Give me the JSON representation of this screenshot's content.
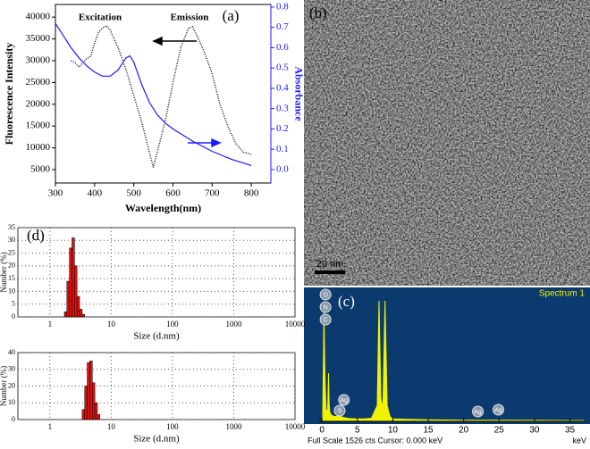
{
  "chart_data": [
    {
      "type": "line",
      "xlabel": "Wavelength(nm)",
      "ylabel": "Fluorescence Intensity",
      "y2label": "Absorbance",
      "annotations": [
        "Excitation",
        "Emission",
        "(a)"
      ],
      "xlim": [
        300,
        850
      ],
      "xticks": [
        300,
        400,
        500,
        600,
        700,
        800
      ],
      "ylim": [
        1930,
        42900
      ],
      "yticks": [
        5000,
        10000,
        15000,
        20000,
        25000,
        30000,
        35000,
        40000
      ],
      "y2lim": [
        -0.066,
        0.813
      ],
      "y2ticks": [
        {
          "value": 0,
          "label": "0.0"
        },
        0.1,
        0.2,
        0.3,
        0.4,
        0.5,
        0.6,
        0.7,
        0.8
      ],
      "series": [
        {
          "color": "#000000",
          "line_style": "dotted",
          "x": [
            340,
            350,
            360,
            370,
            380,
            390,
            400,
            410,
            420,
            430,
            440,
            450,
            460,
            480,
            500,
            520,
            540,
            550,
            560,
            580,
            600,
            620,
            640,
            650,
            660,
            680,
            700,
            720,
            740,
            760,
            780,
            800
          ],
          "values": [
            30000,
            29500,
            28500,
            29500,
            30500,
            31000,
            34000,
            36500,
            37500,
            38000,
            37000,
            35000,
            33000,
            28000,
            22000,
            16000,
            9000,
            5500,
            9000,
            16000,
            25000,
            33000,
            37500,
            37800,
            36000,
            32000,
            27000,
            20000,
            15000,
            11000,
            9000,
            8500
          ]
        },
        {
          "color": "#1a1aff",
          "line_style": "solid",
          "axis": "y2",
          "x": [
            300,
            320,
            340,
            360,
            380,
            400,
            420,
            440,
            460,
            470,
            480,
            490,
            500,
            520,
            540,
            560,
            580,
            600,
            650,
            700,
            750,
            800
          ],
          "values": [
            0.72,
            0.66,
            0.6,
            0.55,
            0.51,
            0.48,
            0.46,
            0.46,
            0.49,
            0.52,
            0.55,
            0.56,
            0.53,
            0.42,
            0.33,
            0.27,
            0.23,
            0.2,
            0.14,
            0.09,
            0.05,
            0.02
          ]
        }
      ]
    },
    {
      "type": "area",
      "title": "Spectrum 1",
      "annotations": [
        "(c)"
      ],
      "xlabel": "keV",
      "footer": "Full Scale 1526 cts  Cursor: 0.000 keV",
      "xlim": [
        -0.4,
        37.2
      ],
      "xticks": [
        0,
        5,
        10,
        15,
        20,
        25,
        30,
        35
      ],
      "ylim": [
        0,
        1526
      ],
      "background": "#0b3a6e",
      "color": "#f2f200",
      "x": [
        0.1,
        0.2,
        0.28,
        0.39,
        0.45,
        0.52,
        0.6,
        0.8,
        0.93,
        1.0,
        1.1,
        1.3,
        1.5,
        2.0,
        2.3,
        2.5,
        2.7,
        3.0,
        3.5,
        4.0,
        5,
        6,
        7,
        7.8,
        8.05,
        8.3,
        8.6,
        8.9,
        9.2,
        9.6,
        10,
        12,
        15,
        20,
        22,
        25,
        30,
        35,
        37
      ],
      "values": [
        100,
        800,
        1450,
        700,
        500,
        300,
        150,
        120,
        610,
        250,
        120,
        80,
        70,
        60,
        70,
        80,
        60,
        50,
        40,
        35,
        30,
        30,
        40,
        200,
        1526,
        300,
        150,
        1526,
        200,
        60,
        30,
        25,
        20,
        15,
        15,
        15,
        12,
        10,
        10
      ],
      "peak_labels": [
        {
          "text": "O",
          "x": 0.5
        },
        {
          "text": "N",
          "x": 0.5
        },
        {
          "text": "C",
          "x": 0.5
        },
        {
          "text": "Ag",
          "x": 3.1
        },
        {
          "text": "S",
          "x": 2.5
        },
        {
          "text": "Ag",
          "x": 22.0
        },
        {
          "text": "Ag",
          "x": 24.9
        }
      ]
    },
    {
      "type": "histogram",
      "annotations": [
        "(d)"
      ],
      "xlabel": "Size (d.nm)",
      "ylabel": "Number (%)",
      "log_x": true,
      "grid": true,
      "color": "#dd1111",
      "xlim": [
        0.3,
        10000
      ],
      "xticks": [
        1,
        10,
        100,
        1000,
        10000
      ],
      "ylim": [
        0,
        35
      ],
      "yticks": [
        0,
        5,
        10,
        15,
        20,
        25,
        30,
        35
      ],
      "bins": [
        1.72,
        1.89,
        2.08,
        2.29,
        2.52,
        2.77,
        3.05,
        3.36,
        3.69
      ],
      "values": [
        2,
        14,
        27,
        31,
        20,
        8,
        3,
        1
      ]
    },
    {
      "type": "histogram",
      "annotations": [],
      "xlabel": "Size (d.nm)",
      "ylabel": "Number (%)",
      "log_x": true,
      "grid": true,
      "color": "#dd1111",
      "xlim": [
        0.3,
        10000
      ],
      "xticks": [
        1,
        10,
        100,
        1000,
        10000
      ],
      "ylim": [
        0,
        40
      ],
      "yticks": [
        0,
        10,
        20,
        30,
        40
      ],
      "bins": [
        3.36,
        3.69,
        4.06,
        4.47,
        4.92,
        5.41,
        5.95,
        6.55
      ],
      "values": [
        6,
        20,
        34,
        35,
        22,
        10,
        3
      ]
    }
  ],
  "panel_b": {
    "label": "(b)",
    "scale_bar": "20 nm"
  }
}
